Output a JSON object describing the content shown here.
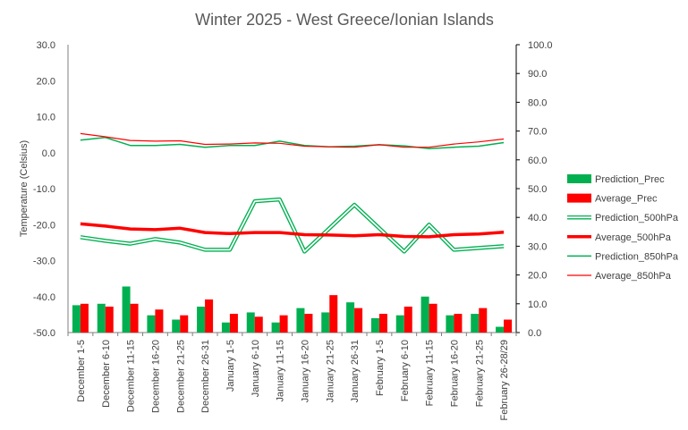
{
  "chart_data": {
    "type": "bar-line-combo",
    "title": "Winter 2025 - West Greece/Ionian Islands",
    "ylabel": "Temperature (Celsius)",
    "y_left": {
      "min": -50,
      "max": 30,
      "step": 10,
      "ticks": [
        "-50.0",
        "-40.0",
        "-30.0",
        "-20.0",
        "-10.0",
        "0.0",
        "10.0",
        "20.0",
        "30.0"
      ]
    },
    "y_right": {
      "min": 0,
      "max": 100,
      "step": 10,
      "ticks": [
        "0.0",
        "10.0",
        "20.0",
        "30.0",
        "40.0",
        "50.0",
        "60.0",
        "70.0",
        "80.0",
        "90.0",
        "100.0"
      ]
    },
    "categories": [
      "December 1-5",
      "December 6-10",
      "December 11-15",
      "December 16-20",
      "December 21-25",
      "December 26-31",
      "January 1-5",
      "January 6-10",
      "January 11-15",
      "January 16-20",
      "January 21-25",
      "January 26-31",
      "February 1-5",
      "February 6-10",
      "February 11-15",
      "February 16-20",
      "February 21-25",
      "February 26-28/29"
    ],
    "legend_position": "right",
    "series": [
      {
        "name": "Prediction_Prec",
        "kind": "bar",
        "axis": "right",
        "color": "#00b050",
        "values": [
          9.5,
          10,
          16,
          6,
          4.5,
          9,
          3.5,
          7,
          3.5,
          8.5,
          7,
          10.5,
          5,
          6,
          12.5,
          6,
          6.5,
          2
        ]
      },
      {
        "name": "Average_Prec",
        "kind": "bar",
        "axis": "right",
        "color": "#ff0000",
        "values": [
          10,
          9,
          10,
          8,
          6,
          11.5,
          6.5,
          5.5,
          6,
          6.5,
          13,
          8.5,
          6.5,
          9,
          10,
          6.5,
          8.5,
          4.5
        ]
      },
      {
        "name": "Prediction_500hPa",
        "kind": "line-double",
        "axis": "left",
        "color": "#00b050",
        "values": [
          -23.5,
          -24.5,
          -25.3,
          -24,
          -25,
          -27,
          -27,
          -13.5,
          -13,
          -27.5,
          -21,
          -14.5,
          -21,
          -27.5,
          -20,
          -27,
          -26.5,
          -26
        ]
      },
      {
        "name": "Average_500hPa",
        "kind": "line",
        "axis": "left",
        "color": "#ff0000",
        "width": 3.5,
        "values": [
          -19.8,
          -20.4,
          -21.2,
          -21.4,
          -21,
          -22.2,
          -22.5,
          -22.2,
          -22.2,
          -22.8,
          -22.9,
          -23.1,
          -22.8,
          -23.3,
          -23.4,
          -22.8,
          -22.6,
          -22.1
        ]
      },
      {
        "name": "Prediction_850hPa",
        "kind": "line",
        "axis": "left",
        "color": "#00b050",
        "width": 1.5,
        "values": [
          3.5,
          4.2,
          2,
          2,
          2.3,
          1.5,
          2,
          2,
          3.2,
          2,
          1.6,
          1.8,
          2.2,
          1.9,
          1.1,
          1.5,
          1.8,
          2.8
        ]
      },
      {
        "name": "Average_850hPa",
        "kind": "line",
        "axis": "left",
        "color": "#ff0000",
        "width": 1.2,
        "values": [
          5.3,
          4.4,
          3.4,
          3.2,
          3.3,
          2.3,
          2.4,
          2.7,
          2.6,
          1.8,
          1.6,
          1.5,
          2.2,
          1.5,
          1.5,
          2.4,
          3,
          3.8
        ]
      }
    ]
  }
}
